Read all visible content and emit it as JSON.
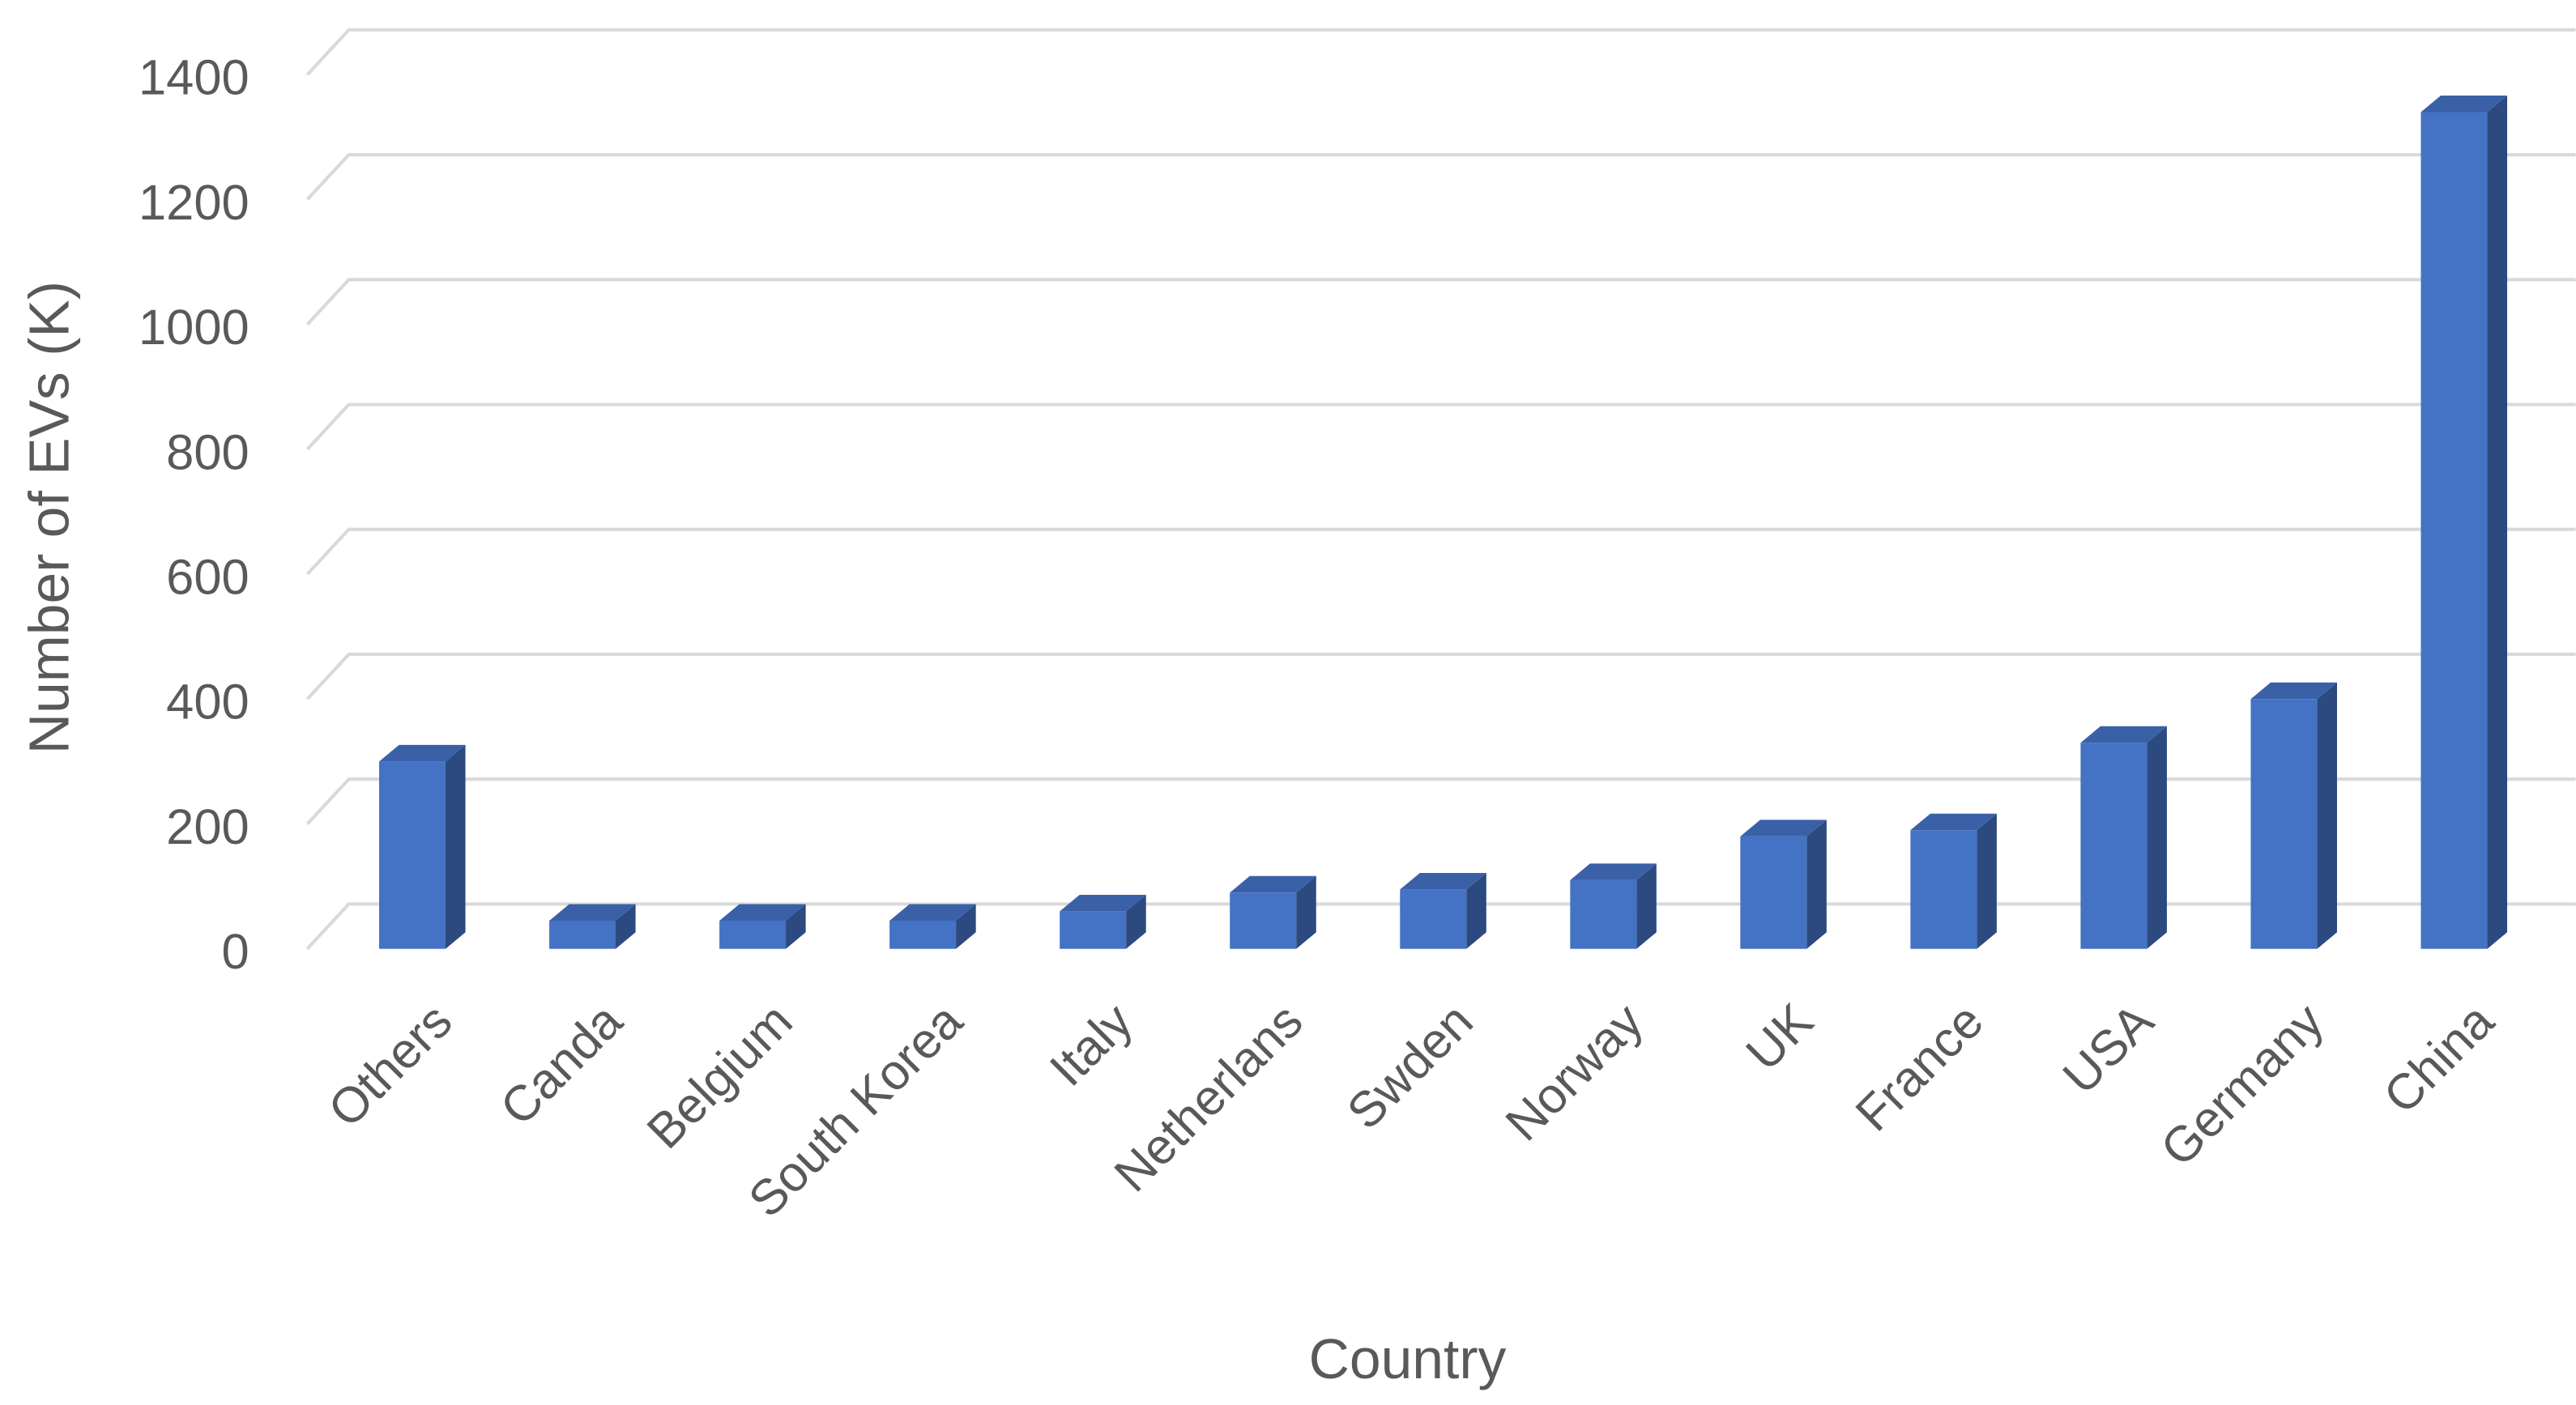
{
  "chart_data": {
    "type": "bar3d",
    "x_label": "Country",
    "y_label": "Number of EVs (K)",
    "categories": [
      "Others",
      "Canda",
      "Belgium",
      "South Korea",
      "Italy",
      "Netherlans",
      "Swden",
      "Norway",
      "UK",
      "France",
      "USA",
      "Germany",
      "China"
    ],
    "values": [
      300,
      45,
      45,
      45,
      60,
      90,
      95,
      110,
      180,
      190,
      330,
      400,
      1340
    ],
    "color": "#4472c4",
    "ylim": [
      0,
      1400
    ],
    "yticks": [
      0,
      200,
      400,
      600,
      800,
      1000,
      1200,
      1400
    ],
    "grid": true
  }
}
